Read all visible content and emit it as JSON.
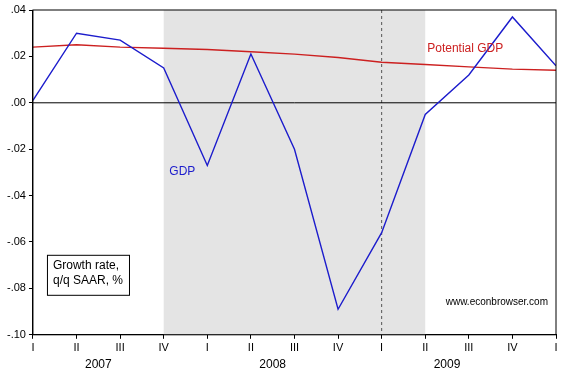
{
  "chart_data": {
    "type": "line",
    "x": [
      2007,
      2007.25,
      2007.5,
      2007.75,
      2008,
      2008.25,
      2008.5,
      2008.75,
      2009,
      2009.25,
      2009.5,
      2009.75,
      2010
    ],
    "series": [
      {
        "name": "GDP",
        "color": "#1c1ccc",
        "values": [
          0.001,
          0.03,
          0.027,
          0.015,
          -0.027,
          0.021,
          -0.02,
          -0.089,
          -0.056,
          -0.005,
          0.012,
          0.037,
          0.016
        ]
      },
      {
        "name": "Potential GDP",
        "color": "#cc2020",
        "values": [
          0.024,
          0.025,
          0.024,
          0.0235,
          0.023,
          0.022,
          0.021,
          0.0195,
          0.0175,
          0.0165,
          0.0155,
          0.0145,
          0.014
        ]
      }
    ],
    "xlim": [
      2007,
      2010
    ],
    "xticks": [
      {
        "value": 2007,
        "label": "I"
      },
      {
        "value": 2007.25,
        "label": "II"
      },
      {
        "value": 2007.5,
        "label": "III"
      },
      {
        "value": 2007.75,
        "label": "IV"
      },
      {
        "value": 2008,
        "label": "I"
      },
      {
        "value": 2008.25,
        "label": "II"
      },
      {
        "value": 2008.5,
        "label": "III"
      },
      {
        "value": 2008.75,
        "label": "IV"
      },
      {
        "value": 2009,
        "label": "I"
      },
      {
        "value": 2009.25,
        "label": "II"
      },
      {
        "value": 2009.5,
        "label": "III"
      },
      {
        "value": 2009.75,
        "label": "IV"
      },
      {
        "value": 2010,
        "label": "I"
      }
    ],
    "x_groups": [
      {
        "label": "2007",
        "from": 2007,
        "to": 2007.75
      },
      {
        "label": "2008",
        "from": 2008,
        "to": 2008.75
      },
      {
        "label": "2009",
        "from": 2009,
        "to": 2009.75
      }
    ],
    "ylim": [
      -0.1,
      0.04
    ],
    "yticks": [
      {
        "value": -0.1,
        "label": "-.10"
      },
      {
        "value": -0.08,
        "label": "-.08"
      },
      {
        "value": -0.06,
        "label": "-.06"
      },
      {
        "value": -0.04,
        "label": "-.04"
      },
      {
        "value": -0.02,
        "label": "-.02"
      },
      {
        "value": 0,
        "label": ".00"
      },
      {
        "value": 0.02,
        "label": ".02"
      },
      {
        "value": 0.04,
        "label": ".04"
      }
    ],
    "shaded": [
      {
        "from": 2007.75,
        "to": 2009.25
      }
    ],
    "vlines": [
      {
        "value": 2009,
        "line_style": "dashed"
      }
    ],
    "hlines": [
      {
        "value": 0,
        "line_style": "solid"
      }
    ],
    "annotations": [
      {
        "text": [
          "Growth rate,",
          "q/q SAAR, %"
        ]
      },
      {
        "text": [
          "www.econbrowser.com"
        ]
      }
    ],
    "grid": false
  }
}
